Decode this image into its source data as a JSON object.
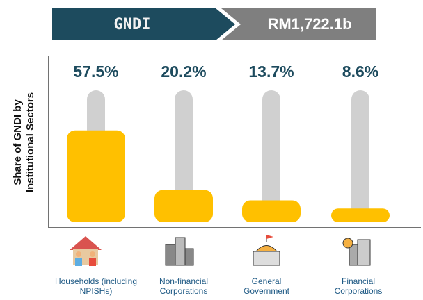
{
  "chart_data": {
    "type": "bar",
    "title": "GNDI",
    "subtitle": "RM1,722.1b",
    "y_label_lines": [
      "Share of GNDI by",
      "Institutional Sectors"
    ],
    "categories": [
      "Households (including NPISHs)",
      "Non-financial Corporations",
      "General Government",
      "Financial Corporations"
    ],
    "values": [
      57.5,
      20.2,
      13.7,
      8.6
    ],
    "value_labels": [
      "57.5%",
      "20.2%",
      "13.7%",
      "8.6%"
    ],
    "color": "#ffc000",
    "track_color": "#d0d0d0"
  }
}
